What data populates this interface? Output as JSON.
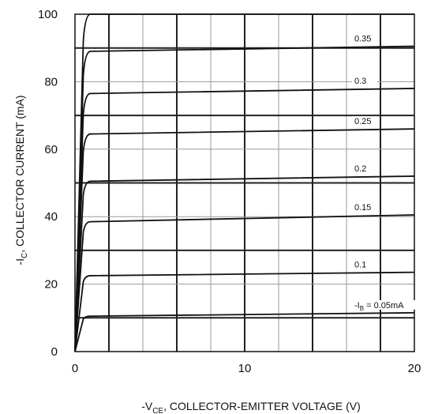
{
  "chart_data": {
    "type": "line",
    "xlabel": {
      "prefix": "-V",
      "sub": "CE",
      "suffix": ", COLLECTOR-EMITTER VOLTAGE (V)"
    },
    "ylabel": {
      "prefix": "-I",
      "sub": "C",
      "suffix": ", COLLECTOR CURRENT (mA)"
    },
    "xlim": [
      0,
      20
    ],
    "ylim": [
      0,
      100
    ],
    "x_ticks": [
      "0",
      "10",
      "20"
    ],
    "y_ticks": [
      "0",
      "20",
      "40",
      "60",
      "80",
      "100"
    ],
    "grid": true,
    "series": [
      {
        "label": "-I",
        "label_sub": "B",
        "label_suffix": " = 0.05mA",
        "sat": 10.5,
        "end": 11.5
      },
      {
        "label": "0.1",
        "sat": 22.5,
        "end": 23.5
      },
      {
        "label": "0.15",
        "sat": 38.5,
        "end": 40.5
      },
      {
        "label": "0.2",
        "sat": 50.5,
        "end": 52
      },
      {
        "label": "0.25",
        "sat": 64.5,
        "end": 66
      },
      {
        "label": "0.3",
        "sat": 76.5,
        "end": 78
      },
      {
        "label": "0.35",
        "sat": 89,
        "end": 90.5
      },
      {
        "label": "",
        "sat": 100,
        "end": 100
      }
    ]
  }
}
